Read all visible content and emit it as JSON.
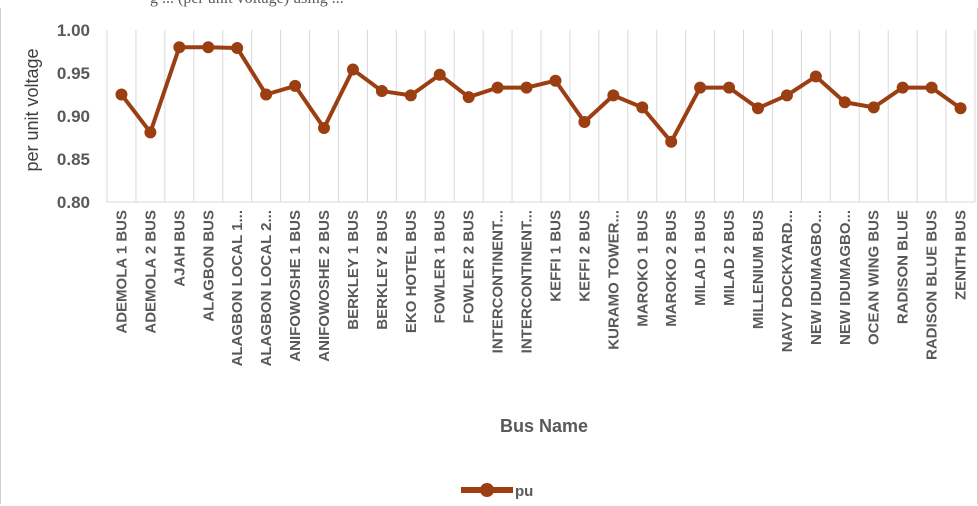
{
  "caption_fragment": "g ... (per unit voltage) using ...",
  "colors": {
    "series": "#9b3e12",
    "grid": "#d9d9d9",
    "text": "#595959"
  },
  "chart_data": {
    "type": "line",
    "title": "",
    "xlabel": "Bus Name",
    "ylabel": "per unit voltage",
    "ylim": [
      0.8,
      1.0
    ],
    "yticks": [
      "0.80",
      "0.85",
      "0.90",
      "0.95",
      "1.00"
    ],
    "grid": "vertical",
    "legend": "bottom",
    "categories": [
      "ADEMOLA 1 BUS",
      "ADEMOLA 2 BUS",
      "AJAH BUS",
      "ALAGBON BUS",
      "ALAGBON LOCAL 1...",
      "ALAGBON LOCAL 2...",
      "ANIFOWOSHE 1 BUS",
      "ANIFOWOSHE 2 BUS",
      "BERKLEY 1 BUS",
      "BERKLEY 2 BUS",
      "EKO HOTEL BUS",
      "FOWLER 1 BUS",
      "FOWLER 2 BUS",
      "INTERCONTINENT...",
      "INTERCONTINENT...",
      "KEFFI 1 BUS",
      "KEFFI 2 BUS",
      "KURAMO TOWER...",
      "MAROKO 1 BUS",
      "MAROKO 2 BUS",
      "MILAD 1 BUS",
      "MILAD 2 BUS",
      "MILLENIUM BUS",
      "NAVY DOCKYARD...",
      "NEW IDUMAGBO...",
      "NEW IDUMAGBO...",
      "OCEAN WING BUS",
      "RADISON BLUE",
      "RADISON BLUE BUS",
      "ZENITH BUS"
    ],
    "series": [
      {
        "name": "pu",
        "values": [
          0.925,
          0.881,
          0.98,
          0.98,
          0.979,
          0.925,
          0.935,
          0.886,
          0.954,
          0.929,
          0.924,
          0.948,
          0.922,
          0.933,
          0.933,
          0.941,
          0.893,
          0.924,
          0.91,
          0.87,
          0.933,
          0.933,
          0.909,
          0.924,
          0.946,
          0.916,
          0.91,
          0.933,
          0.933,
          0.909
        ]
      }
    ]
  }
}
